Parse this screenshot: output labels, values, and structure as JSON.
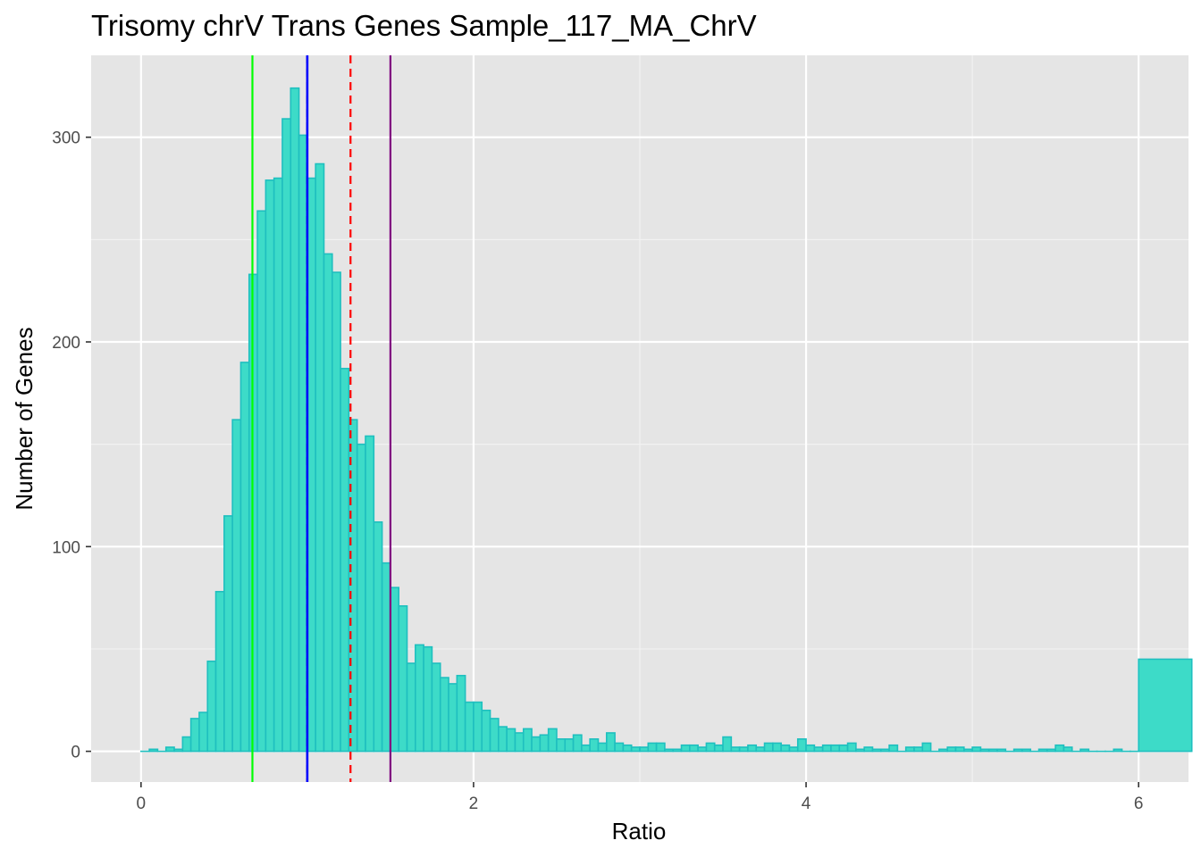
{
  "chart_data": {
    "type": "bar",
    "title": "Trisomy chrV Trans Genes Sample_117_MA_ChrV",
    "xlabel": "Ratio",
    "ylabel": "Number of Genes",
    "xlim": [
      -0.3,
      6.3
    ],
    "ylim": [
      -15,
      340
    ],
    "x_ticks": [
      0,
      2,
      4,
      6
    ],
    "y_ticks": [
      0,
      100,
      200,
      300
    ],
    "grid": true,
    "bin_width": 0.05,
    "fill_color": "#3ddbc8",
    "edge_color": "#1fbfbf",
    "panel_background": "#e5e5e5",
    "bins": [
      {
        "x": 0.0,
        "y": 0
      },
      {
        "x": 0.05,
        "y": 1
      },
      {
        "x": 0.1,
        "y": 0
      },
      {
        "x": 0.15,
        "y": 2
      },
      {
        "x": 0.2,
        "y": 1
      },
      {
        "x": 0.25,
        "y": 7
      },
      {
        "x": 0.3,
        "y": 16
      },
      {
        "x": 0.35,
        "y": 19
      },
      {
        "x": 0.4,
        "y": 44
      },
      {
        "x": 0.45,
        "y": 78
      },
      {
        "x": 0.5,
        "y": 115
      },
      {
        "x": 0.55,
        "y": 162
      },
      {
        "x": 0.6,
        "y": 190
      },
      {
        "x": 0.65,
        "y": 233
      },
      {
        "x": 0.7,
        "y": 264
      },
      {
        "x": 0.75,
        "y": 279
      },
      {
        "x": 0.8,
        "y": 280
      },
      {
        "x": 0.85,
        "y": 309
      },
      {
        "x": 0.9,
        "y": 324
      },
      {
        "x": 0.95,
        "y": 301
      },
      {
        "x": 1.0,
        "y": 280
      },
      {
        "x": 1.05,
        "y": 287
      },
      {
        "x": 1.1,
        "y": 243
      },
      {
        "x": 1.15,
        "y": 234
      },
      {
        "x": 1.2,
        "y": 187
      },
      {
        "x": 1.25,
        "y": 162
      },
      {
        "x": 1.3,
        "y": 150
      },
      {
        "x": 1.35,
        "y": 154
      },
      {
        "x": 1.4,
        "y": 112
      },
      {
        "x": 1.45,
        "y": 92
      },
      {
        "x": 1.5,
        "y": 80
      },
      {
        "x": 1.55,
        "y": 71
      },
      {
        "x": 1.6,
        "y": 43
      },
      {
        "x": 1.65,
        "y": 52
      },
      {
        "x": 1.7,
        "y": 51
      },
      {
        "x": 1.75,
        "y": 43
      },
      {
        "x": 1.8,
        "y": 36
      },
      {
        "x": 1.85,
        "y": 33
      },
      {
        "x": 1.9,
        "y": 37
      },
      {
        "x": 1.95,
        "y": 24
      },
      {
        "x": 2.0,
        "y": 24
      },
      {
        "x": 2.05,
        "y": 20
      },
      {
        "x": 2.1,
        "y": 16
      },
      {
        "x": 2.15,
        "y": 12
      },
      {
        "x": 2.2,
        "y": 11
      },
      {
        "x": 2.25,
        "y": 9
      },
      {
        "x": 2.3,
        "y": 11
      },
      {
        "x": 2.35,
        "y": 7
      },
      {
        "x": 2.4,
        "y": 8
      },
      {
        "x": 2.45,
        "y": 11
      },
      {
        "x": 2.5,
        "y": 6
      },
      {
        "x": 2.55,
        "y": 6
      },
      {
        "x": 2.6,
        "y": 8
      },
      {
        "x": 2.65,
        "y": 3
      },
      {
        "x": 2.7,
        "y": 6
      },
      {
        "x": 2.75,
        "y": 4
      },
      {
        "x": 2.8,
        "y": 9
      },
      {
        "x": 2.85,
        "y": 4
      },
      {
        "x": 2.9,
        "y": 3
      },
      {
        "x": 2.95,
        "y": 2
      },
      {
        "x": 3.0,
        "y": 2
      },
      {
        "x": 3.05,
        "y": 4
      },
      {
        "x": 3.1,
        "y": 4
      },
      {
        "x": 3.15,
        "y": 1
      },
      {
        "x": 3.2,
        "y": 1
      },
      {
        "x": 3.25,
        "y": 3
      },
      {
        "x": 3.3,
        "y": 3
      },
      {
        "x": 3.35,
        "y": 2
      },
      {
        "x": 3.4,
        "y": 4
      },
      {
        "x": 3.45,
        "y": 3
      },
      {
        "x": 3.5,
        "y": 7
      },
      {
        "x": 3.55,
        "y": 2
      },
      {
        "x": 3.6,
        "y": 2
      },
      {
        "x": 3.65,
        "y": 3
      },
      {
        "x": 3.7,
        "y": 2
      },
      {
        "x": 3.75,
        "y": 4
      },
      {
        "x": 3.8,
        "y": 4
      },
      {
        "x": 3.85,
        "y": 3
      },
      {
        "x": 3.9,
        "y": 2
      },
      {
        "x": 3.95,
        "y": 6
      },
      {
        "x": 4.0,
        "y": 3
      },
      {
        "x": 4.05,
        "y": 2
      },
      {
        "x": 4.1,
        "y": 3
      },
      {
        "x": 4.15,
        "y": 3
      },
      {
        "x": 4.2,
        "y": 3
      },
      {
        "x": 4.25,
        "y": 4
      },
      {
        "x": 4.3,
        "y": 1
      },
      {
        "x": 4.35,
        "y": 2
      },
      {
        "x": 4.4,
        "y": 1
      },
      {
        "x": 4.45,
        "y": 1
      },
      {
        "x": 4.5,
        "y": 3
      },
      {
        "x": 4.55,
        "y": 0
      },
      {
        "x": 4.6,
        "y": 2
      },
      {
        "x": 4.65,
        "y": 2
      },
      {
        "x": 4.7,
        "y": 4
      },
      {
        "x": 4.75,
        "y": 0
      },
      {
        "x": 4.8,
        "y": 1
      },
      {
        "x": 4.85,
        "y": 2
      },
      {
        "x": 4.9,
        "y": 2
      },
      {
        "x": 4.95,
        "y": 1
      },
      {
        "x": 5.0,
        "y": 2
      },
      {
        "x": 5.05,
        "y": 1
      },
      {
        "x": 5.1,
        "y": 1
      },
      {
        "x": 5.15,
        "y": 1
      },
      {
        "x": 5.2,
        "y": 0
      },
      {
        "x": 5.25,
        "y": 1
      },
      {
        "x": 5.3,
        "y": 1
      },
      {
        "x": 5.35,
        "y": 0
      },
      {
        "x": 5.4,
        "y": 1
      },
      {
        "x": 5.45,
        "y": 1
      },
      {
        "x": 5.5,
        "y": 3
      },
      {
        "x": 5.55,
        "y": 2
      },
      {
        "x": 5.6,
        "y": 0
      },
      {
        "x": 5.65,
        "y": 1
      },
      {
        "x": 5.7,
        "y": 0
      },
      {
        "x": 5.75,
        "y": 0
      },
      {
        "x": 5.8,
        "y": 0
      },
      {
        "x": 5.85,
        "y": 1
      },
      {
        "x": 5.9,
        "y": 0
      },
      {
        "x": 5.95,
        "y": 0
      },
      {
        "x": 6.0,
        "y": 45,
        "width": 0.32
      }
    ],
    "reference_lines": [
      {
        "x": 0.67,
        "color": "#00ff00",
        "style": "solid"
      },
      {
        "x": 1.0,
        "color": "#000000",
        "style": "dashed"
      },
      {
        "x": 1.0,
        "color": "#0000ff",
        "style": "solid"
      },
      {
        "x": 1.26,
        "color": "#ff0000",
        "style": "dashed"
      },
      {
        "x": 1.5,
        "color": "#800080",
        "style": "solid"
      }
    ]
  }
}
